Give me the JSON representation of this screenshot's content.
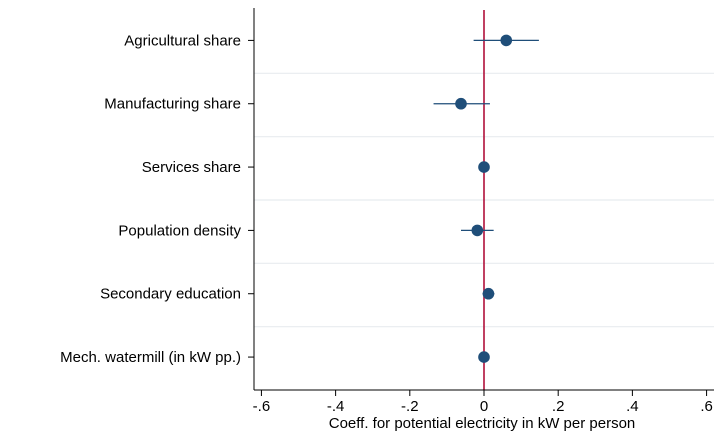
{
  "chart_data": {
    "type": "scatter",
    "subtype": "coefficient-plot",
    "title": "",
    "xlabel": "Coeff. for potential electricity in kW per person",
    "ylabel": "",
    "xlim": [
      -0.62,
      0.62
    ],
    "xticks": [
      -0.6,
      -0.4,
      -0.2,
      0,
      0.2,
      0.4,
      0.6
    ],
    "xtick_labels": [
      "-.6",
      "-.4",
      "-.2",
      "0",
      ".2",
      ".4",
      ".6"
    ],
    "reference_line": {
      "x": 0,
      "color": "#b0103a"
    },
    "grid": "horizontal",
    "legend": "none",
    "colors": {
      "marker": "#1f4e79",
      "ci": "#1f4e79",
      "grid": "#e8ecef",
      "axis": "#000000"
    },
    "categories": [
      "Agricultural share",
      "Manufacturing share",
      "Services share",
      "Population density",
      "Secondary education",
      "Mech. watermill (in kW pp.)"
    ],
    "values": [
      0.06,
      -0.062,
      0.0,
      -0.018,
      0.012,
      0.0
    ],
    "ci_low": [
      -0.028,
      -0.136,
      -0.004,
      -0.062,
      -0.004,
      -0.004
    ],
    "ci_high": [
      0.148,
      0.016,
      0.004,
      0.026,
      0.028,
      0.004
    ]
  }
}
